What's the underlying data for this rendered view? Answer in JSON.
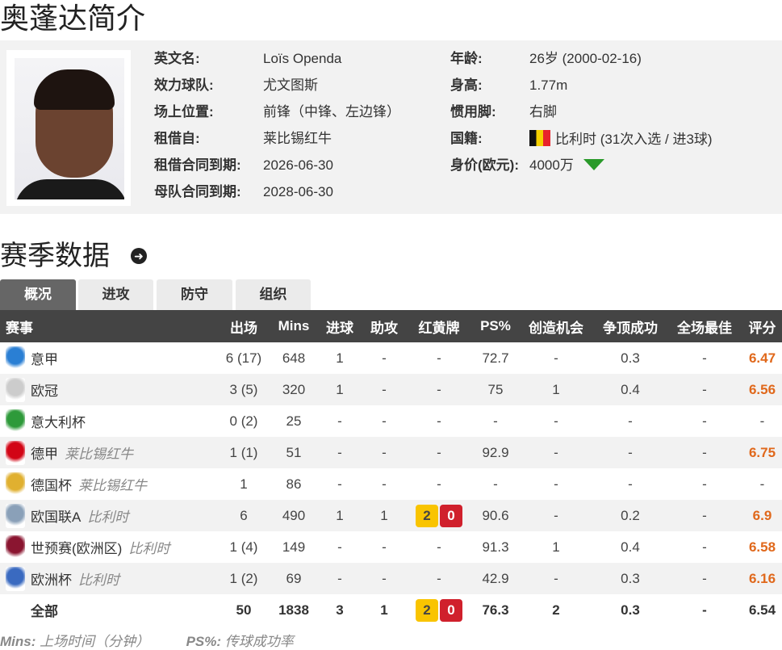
{
  "title": "奥蓬达简介",
  "profile": {
    "left": [
      {
        "label": "英文名:",
        "value": "Loïs Openda"
      },
      {
        "label": "效力球队:",
        "value": "尤文图斯"
      },
      {
        "label": "场上位置:",
        "value": "前锋（中锋、左边锋）"
      },
      {
        "label": "租借自:",
        "value": "莱比锡红牛"
      },
      {
        "label": "租借合同到期:",
        "value": "2026-06-30"
      },
      {
        "label": "母队合同到期:",
        "value": "2028-06-30"
      }
    ],
    "right": [
      {
        "label": "年龄:",
        "value": "26岁  (2000-02-16)"
      },
      {
        "label": "身高:",
        "value": "1.77m"
      },
      {
        "label": "惯用脚:",
        "value": "右脚"
      },
      {
        "label": "国籍:",
        "value": "比利时 (31次入选 / 进3球)"
      },
      {
        "label": "身价(欧元):",
        "value": "4000万"
      }
    ],
    "value_trend": "down",
    "trend_color": "#2a9a2a"
  },
  "section_title": "赛季数据",
  "tabs": [
    "概况",
    "进攻",
    "防守",
    "组织"
  ],
  "active_tab": "概况",
  "headers": [
    "赛事",
    "出场",
    "Mins",
    "进球",
    "助攻",
    "红黄牌",
    "PS%",
    "创造机会",
    "争顶成功",
    "全场最佳",
    "评分"
  ],
  "rows": [
    {
      "icon": "serie-a-logo",
      "color": "#2a7fd4",
      "comp": "意甲",
      "team": "",
      "apps": "6 (17)",
      "mins": "648",
      "goals": "1",
      "assists": "-",
      "cards": "-",
      "ps": "72.7",
      "chances": "-",
      "aerial": "0.3",
      "motm": "-",
      "rating": "6.47"
    },
    {
      "icon": "champions-league-logo",
      "color": "#cccccc",
      "comp": "欧冠",
      "team": "",
      "apps": "3 (5)",
      "mins": "320",
      "goals": "1",
      "assists": "-",
      "cards": "-",
      "ps": "75",
      "chances": "1",
      "aerial": "0.4",
      "motm": "-",
      "rating": "6.56"
    },
    {
      "icon": "coppa-italia-logo",
      "color": "#2e9a3a",
      "comp": "意大利杯",
      "team": "",
      "apps": "0 (2)",
      "mins": "25",
      "goals": "-",
      "assists": "-",
      "cards": "-",
      "ps": "-",
      "chances": "-",
      "aerial": "-",
      "motm": "-",
      "rating": "-"
    },
    {
      "icon": "bundesliga-logo",
      "color": "#d20515",
      "comp": "德甲",
      "team": "莱比锡红牛",
      "apps": "1 (1)",
      "mins": "51",
      "goals": "-",
      "assists": "-",
      "cards": "-",
      "ps": "92.9",
      "chances": "-",
      "aerial": "-",
      "motm": "-",
      "rating": "6.75"
    },
    {
      "icon": "dfb-pokal-logo",
      "color": "#e0b030",
      "comp": "德国杯",
      "team": "莱比锡红牛",
      "apps": "1",
      "mins": "86",
      "goals": "-",
      "assists": "-",
      "cards": "-",
      "ps": "-",
      "chances": "-",
      "aerial": "-",
      "motm": "-",
      "rating": "-"
    },
    {
      "icon": "nations-league-logo",
      "color": "#8aa0b8",
      "comp": "欧国联A",
      "team": "比利时",
      "apps": "6",
      "mins": "490",
      "goals": "1",
      "assists": "1",
      "cards": {
        "yellow": "2",
        "red": "0"
      },
      "ps": "90.6",
      "chances": "-",
      "aerial": "0.2",
      "motm": "-",
      "rating": "6.9"
    },
    {
      "icon": "wc-qualifiers-logo",
      "color": "#8a1530",
      "comp": "世预赛(欧洲区)",
      "team": "比利时",
      "apps": "1 (4)",
      "mins": "149",
      "goals": "-",
      "assists": "-",
      "cards": "-",
      "ps": "91.3",
      "chances": "1",
      "aerial": "0.4",
      "motm": "-",
      "rating": "6.58"
    },
    {
      "icon": "euro-logo",
      "color": "#3a6ac0",
      "comp": "欧洲杯",
      "team": "比利时",
      "apps": "1 (2)",
      "mins": "69",
      "goals": "-",
      "assists": "-",
      "cards": "-",
      "ps": "42.9",
      "chances": "-",
      "aerial": "0.3",
      "motm": "-",
      "rating": "6.16"
    }
  ],
  "total": {
    "comp": "全部",
    "apps": "50",
    "mins": "1838",
    "goals": "3",
    "assists": "1",
    "cards": {
      "yellow": "2",
      "red": "0"
    },
    "ps": "76.3",
    "chances": "2",
    "aerial": "0.3",
    "motm": "-",
    "rating": "6.54"
  },
  "notes": [
    {
      "key": "Mins:",
      "text": "上场时间（分钟）"
    },
    {
      "key": "PS%:",
      "text": "传球成功率"
    }
  ],
  "colors": {
    "header_bg": "#444444",
    "rating": "#e0681b",
    "yellow_card": "#f9c400",
    "red_card": "#d0202c"
  }
}
